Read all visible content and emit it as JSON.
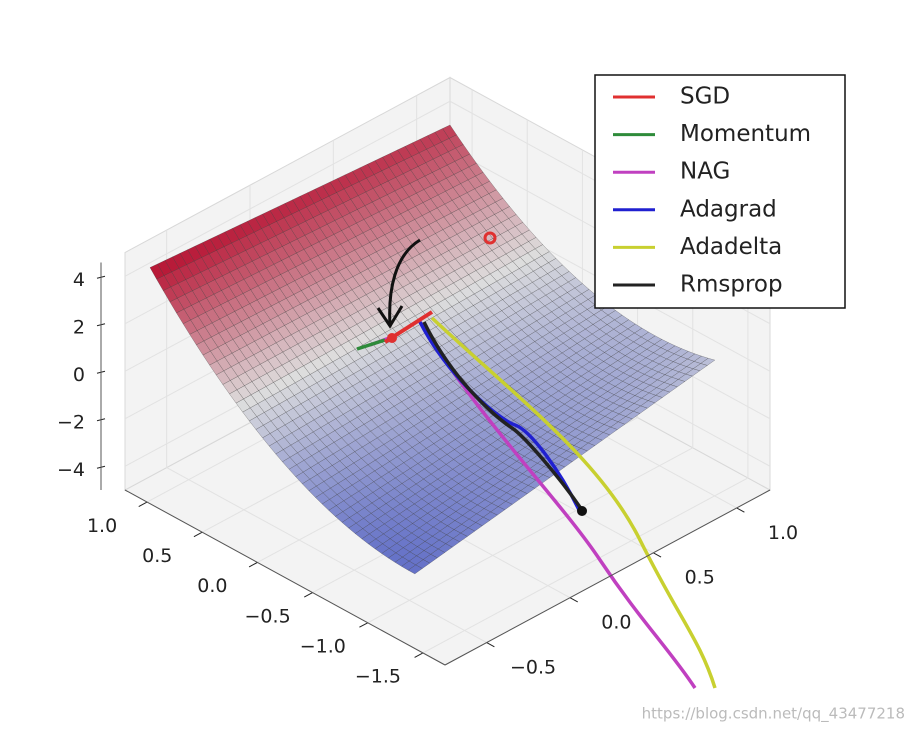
{
  "chart_data": {
    "type": "surface3d",
    "series": [
      {
        "name": "SGD",
        "color": "#e03030"
      },
      {
        "name": "Momentum",
        "color": "#2e8b3a"
      },
      {
        "name": "NAG",
        "color": "#c040c0"
      },
      {
        "name": "Adagrad",
        "color": "#2020d0"
      },
      {
        "name": "Adadelta",
        "color": "#c8d030"
      },
      {
        "name": "Rmsprop",
        "color": "#222222"
      }
    ],
    "xlim": [
      -1.7,
      1.2
    ],
    "ylim": [
      -0.75,
      1.2
    ],
    "zlim": [
      -5,
      5
    ],
    "xticks": [
      {
        "value": 1,
        "label": "1.0"
      },
      0.5,
      {
        "value": 0,
        "label": "0.0"
      },
      {
        "value": -0.5,
        "label": "−0.5"
      },
      {
        "value": -1,
        "label": "−1.0"
      },
      {
        "value": -1.5,
        "label": "−1.5"
      }
    ],
    "yticks": [
      {
        "value": 1,
        "label": "1.0"
      },
      0.5,
      {
        "value": 0,
        "label": "0.0"
      },
      {
        "value": -0.5,
        "label": "−0.5"
      }
    ],
    "zticks": [
      4,
      2,
      0,
      {
        "value": -2,
        "label": "−2"
      },
      {
        "value": -4,
        "label": "−4"
      }
    ],
    "legend": "upper right",
    "watermark": "https://blog.csdn.net/qq_43477218"
  }
}
